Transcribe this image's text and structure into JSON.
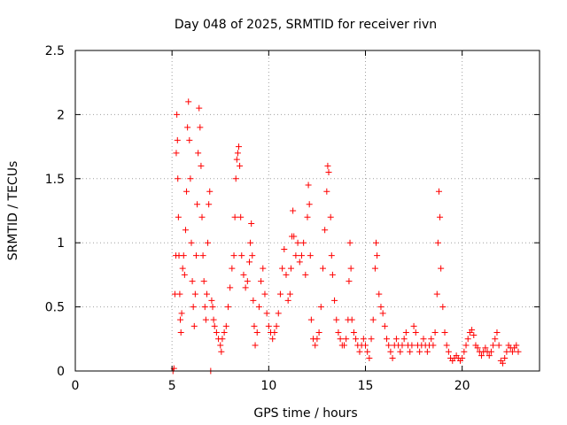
{
  "chart_data": {
    "type": "scatter",
    "title": "Day 048 of 2025, SRMTID for receiver rivn",
    "xlabel": "GPS time / hours",
    "ylabel": "SRMTID / TECUs",
    "xlim": [
      0,
      24
    ],
    "ylim": [
      0,
      2.5
    ],
    "x_ticks": [
      "0",
      "5",
      "10",
      "15",
      "20"
    ],
    "y_ticks": [
      "0",
      "0.5",
      "1",
      "1.5",
      "2",
      "2.5"
    ],
    "grid": true,
    "marker": "plus",
    "color": "#ff0000",
    "series": [
      {
        "name": "SRMTID",
        "points": [
          [
            5.05,
            0.0
          ],
          [
            5.1,
            0.02
          ],
          [
            5.15,
            0.6
          ],
          [
            5.2,
            0.9
          ],
          [
            5.22,
            1.7
          ],
          [
            5.25,
            2.0
          ],
          [
            5.28,
            1.8
          ],
          [
            5.3,
            1.5
          ],
          [
            5.33,
            1.2
          ],
          [
            5.36,
            0.9
          ],
          [
            5.4,
            0.6
          ],
          [
            5.43,
            0.4
          ],
          [
            5.46,
            0.3
          ],
          [
            5.5,
            0.45
          ],
          [
            5.55,
            0.8
          ],
          [
            5.6,
            0.9
          ],
          [
            5.65,
            0.75
          ],
          [
            5.7,
            1.1
          ],
          [
            5.75,
            1.4
          ],
          [
            5.8,
            1.9
          ],
          [
            5.85,
            2.1
          ],
          [
            5.9,
            1.8
          ],
          [
            5.95,
            1.5
          ],
          [
            6.0,
            1.0
          ],
          [
            6.05,
            0.7
          ],
          [
            6.1,
            0.5
          ],
          [
            6.15,
            0.35
          ],
          [
            6.2,
            0.6
          ],
          [
            6.25,
            0.9
          ],
          [
            6.3,
            1.3
          ],
          [
            6.35,
            1.7
          ],
          [
            6.4,
            2.05
          ],
          [
            6.45,
            1.9
          ],
          [
            6.5,
            1.6
          ],
          [
            6.55,
            1.2
          ],
          [
            6.6,
            0.9
          ],
          [
            6.65,
            0.7
          ],
          [
            6.7,
            0.5
          ],
          [
            6.75,
            0.4
          ],
          [
            6.8,
            0.6
          ],
          [
            6.85,
            1.0
          ],
          [
            6.9,
            1.3
          ],
          [
            6.95,
            1.4
          ],
          [
            7.0,
            0.0
          ],
          [
            7.05,
            0.55
          ],
          [
            7.1,
            0.5
          ],
          [
            7.15,
            0.4
          ],
          [
            7.2,
            0.35
          ],
          [
            7.3,
            0.3
          ],
          [
            7.4,
            0.25
          ],
          [
            7.5,
            0.2
          ],
          [
            7.55,
            0.15
          ],
          [
            7.6,
            0.25
          ],
          [
            7.7,
            0.3
          ],
          [
            7.8,
            0.35
          ],
          [
            7.9,
            0.5
          ],
          [
            8.0,
            0.65
          ],
          [
            8.1,
            0.8
          ],
          [
            8.2,
            0.9
          ],
          [
            8.25,
            1.2
          ],
          [
            8.3,
            1.5
          ],
          [
            8.35,
            1.65
          ],
          [
            8.4,
            1.7
          ],
          [
            8.45,
            1.75
          ],
          [
            8.5,
            1.6
          ],
          [
            8.55,
            1.2
          ],
          [
            8.6,
            0.9
          ],
          [
            8.7,
            0.75
          ],
          [
            8.8,
            0.65
          ],
          [
            8.9,
            0.7
          ],
          [
            9.0,
            0.85
          ],
          [
            9.05,
            1.0
          ],
          [
            9.1,
            1.15
          ],
          [
            9.15,
            0.9
          ],
          [
            9.2,
            0.55
          ],
          [
            9.25,
            0.35
          ],
          [
            9.3,
            0.2
          ],
          [
            9.4,
            0.3
          ],
          [
            9.5,
            0.5
          ],
          [
            9.6,
            0.7
          ],
          [
            9.7,
            0.8
          ],
          [
            9.8,
            0.6
          ],
          [
            9.9,
            0.45
          ],
          [
            10.0,
            0.35
          ],
          [
            10.1,
            0.3
          ],
          [
            10.2,
            0.25
          ],
          [
            10.3,
            0.3
          ],
          [
            10.4,
            0.35
          ],
          [
            10.5,
            0.45
          ],
          [
            10.6,
            0.6
          ],
          [
            10.7,
            0.8
          ],
          [
            10.8,
            0.95
          ],
          [
            10.9,
            0.75
          ],
          [
            11.0,
            0.55
          ],
          [
            11.1,
            0.6
          ],
          [
            11.15,
            0.8
          ],
          [
            11.2,
            1.05
          ],
          [
            11.25,
            1.25
          ],
          [
            11.3,
            1.05
          ],
          [
            11.4,
            0.9
          ],
          [
            11.5,
            1.0
          ],
          [
            11.6,
            0.85
          ],
          [
            11.7,
            0.9
          ],
          [
            11.8,
            1.0
          ],
          [
            11.9,
            0.75
          ],
          [
            12.0,
            1.2
          ],
          [
            12.05,
            1.45
          ],
          [
            12.1,
            1.3
          ],
          [
            12.15,
            0.9
          ],
          [
            12.2,
            0.4
          ],
          [
            12.3,
            0.25
          ],
          [
            12.4,
            0.2
          ],
          [
            12.5,
            0.25
          ],
          [
            12.6,
            0.3
          ],
          [
            12.7,
            0.5
          ],
          [
            12.8,
            0.8
          ],
          [
            12.9,
            1.1
          ],
          [
            13.0,
            1.4
          ],
          [
            13.05,
            1.6
          ],
          [
            13.1,
            1.55
          ],
          [
            13.2,
            1.2
          ],
          [
            13.25,
            0.9
          ],
          [
            13.3,
            0.75
          ],
          [
            13.4,
            0.55
          ],
          [
            13.5,
            0.4
          ],
          [
            13.6,
            0.3
          ],
          [
            13.7,
            0.25
          ],
          [
            13.8,
            0.2
          ],
          [
            13.9,
            0.2
          ],
          [
            14.0,
            0.25
          ],
          [
            14.1,
            0.4
          ],
          [
            14.15,
            0.7
          ],
          [
            14.2,
            1.0
          ],
          [
            14.25,
            0.8
          ],
          [
            14.3,
            0.4
          ],
          [
            14.4,
            0.3
          ],
          [
            14.5,
            0.25
          ],
          [
            14.6,
            0.2
          ],
          [
            14.7,
            0.15
          ],
          [
            14.8,
            0.2
          ],
          [
            14.9,
            0.25
          ],
          [
            15.0,
            0.2
          ],
          [
            15.1,
            0.15
          ],
          [
            15.2,
            0.1
          ],
          [
            15.3,
            0.25
          ],
          [
            15.4,
            0.4
          ],
          [
            15.5,
            0.8
          ],
          [
            15.55,
            1.0
          ],
          [
            15.6,
            0.9
          ],
          [
            15.7,
            0.6
          ],
          [
            15.8,
            0.5
          ],
          [
            15.9,
            0.45
          ],
          [
            16.0,
            0.35
          ],
          [
            16.1,
            0.25
          ],
          [
            16.2,
            0.2
          ],
          [
            16.3,
            0.15
          ],
          [
            16.4,
            0.1
          ],
          [
            16.5,
            0.2
          ],
          [
            16.6,
            0.25
          ],
          [
            16.7,
            0.2
          ],
          [
            16.8,
            0.15
          ],
          [
            16.9,
            0.2
          ],
          [
            17.0,
            0.25
          ],
          [
            17.1,
            0.3
          ],
          [
            17.2,
            0.2
          ],
          [
            17.3,
            0.15
          ],
          [
            17.4,
            0.2
          ],
          [
            17.5,
            0.35
          ],
          [
            17.6,
            0.3
          ],
          [
            17.7,
            0.2
          ],
          [
            17.8,
            0.15
          ],
          [
            17.9,
            0.2
          ],
          [
            18.0,
            0.25
          ],
          [
            18.1,
            0.2
          ],
          [
            18.2,
            0.15
          ],
          [
            18.3,
            0.2
          ],
          [
            18.4,
            0.25
          ],
          [
            18.5,
            0.2
          ],
          [
            18.6,
            0.3
          ],
          [
            18.7,
            0.6
          ],
          [
            18.75,
            1.0
          ],
          [
            18.8,
            1.4
          ],
          [
            18.85,
            1.2
          ],
          [
            18.9,
            0.8
          ],
          [
            19.0,
            0.5
          ],
          [
            19.1,
            0.3
          ],
          [
            19.2,
            0.2
          ],
          [
            19.3,
            0.15
          ],
          [
            19.4,
            0.1
          ],
          [
            19.5,
            0.08
          ],
          [
            19.6,
            0.1
          ],
          [
            19.7,
            0.12
          ],
          [
            19.8,
            0.1
          ],
          [
            19.9,
            0.08
          ],
          [
            20.0,
            0.1
          ],
          [
            20.1,
            0.15
          ],
          [
            20.2,
            0.2
          ],
          [
            20.3,
            0.25
          ],
          [
            20.4,
            0.3
          ],
          [
            20.5,
            0.32
          ],
          [
            20.6,
            0.28
          ],
          [
            20.7,
            0.2
          ],
          [
            20.8,
            0.18
          ],
          [
            20.9,
            0.15
          ],
          [
            21.0,
            0.12
          ],
          [
            21.1,
            0.15
          ],
          [
            21.2,
            0.18
          ],
          [
            21.3,
            0.15
          ],
          [
            21.4,
            0.12
          ],
          [
            21.5,
            0.15
          ],
          [
            21.6,
            0.2
          ],
          [
            21.7,
            0.25
          ],
          [
            21.8,
            0.3
          ],
          [
            21.9,
            0.2
          ],
          [
            22.0,
            0.08
          ],
          [
            22.1,
            0.06
          ],
          [
            22.2,
            0.1
          ],
          [
            22.3,
            0.15
          ],
          [
            22.4,
            0.2
          ],
          [
            22.5,
            0.18
          ],
          [
            22.6,
            0.15
          ],
          [
            22.7,
            0.18
          ],
          [
            22.8,
            0.2
          ],
          [
            22.9,
            0.15
          ]
        ]
      }
    ]
  }
}
